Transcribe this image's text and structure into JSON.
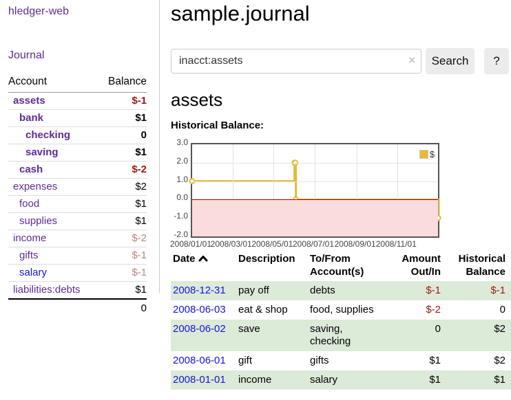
{
  "app": {
    "title": "hledger-web",
    "nav_journal": "Journal"
  },
  "colors": {
    "link_purple": "#5e2b97",
    "link_blue": "#1414e0",
    "negative_strong": "#9d1515",
    "negative_muted": "#bf8080",
    "row_shade_green": "#dcead8",
    "series_yellow": "#e6ba35",
    "negative_region_pink": "#fbdcdc",
    "zero_line_red": "#a40000",
    "button_gray": "#ececec"
  },
  "sidebar": {
    "header": {
      "account": "Account",
      "balance": "Balance"
    },
    "rows": [
      {
        "label": "assets",
        "balance": "$-1",
        "indent": 1,
        "bold": true,
        "balance_style": "neg-strong"
      },
      {
        "label": "bank",
        "balance": "$1",
        "indent": 2,
        "bold": true,
        "balance_style": "pos"
      },
      {
        "label": "checking",
        "balance": "0",
        "indent": 3,
        "bold": true,
        "balance_style": "pos"
      },
      {
        "label": "saving",
        "balance": "$1",
        "indent": 3,
        "bold": true,
        "balance_style": "pos"
      },
      {
        "label": "cash",
        "balance": "$-2",
        "indent": 2,
        "bold": true,
        "balance_style": "neg-strong"
      },
      {
        "label": "expenses",
        "balance": "$2",
        "indent": 1,
        "bold": false,
        "balance_style": "pos"
      },
      {
        "label": "food",
        "balance": "$1",
        "indent": 2,
        "bold": false,
        "balance_style": "pos"
      },
      {
        "label": "supplies",
        "balance": "$1",
        "indent": 2,
        "bold": false,
        "balance_style": "pos"
      },
      {
        "label": "income",
        "balance": "$-2",
        "indent": 1,
        "bold": false,
        "balance_style": "neg-muted"
      },
      {
        "label": "gifts",
        "balance": "$-1",
        "indent": 2,
        "bold": false,
        "balance_style": "neg-muted"
      },
      {
        "label": "salary",
        "balance": "$-1",
        "indent": 2,
        "bold": false,
        "balance_style": "neg-muted",
        "link_style": "blue"
      },
      {
        "label": "liabilities:debts",
        "balance": "$1",
        "indent": 1,
        "bold": false,
        "balance_style": "pos"
      }
    ],
    "total": "0"
  },
  "main": {
    "title": "sample.journal",
    "search": {
      "value": "inacct:assets",
      "clear_icon": "×",
      "button": "Search",
      "help_button": "?"
    },
    "account_heading": "assets",
    "chart_label": "Historical Balance:"
  },
  "chart_data": {
    "type": "line",
    "title": "Historical Balance",
    "xlabel": "",
    "ylabel": "",
    "grid": true,
    "legend": {
      "label": "$",
      "position": "top-right"
    },
    "ylim": [
      -2.0,
      3.0
    ],
    "xlim_days": [
      0,
      365
    ],
    "y_ticks": [
      "3.0",
      "2.0",
      "1.0",
      "0.0",
      "-1.0",
      "-2.0"
    ],
    "x_ticks": [
      {
        "label": "2008/01/01",
        "day": 0
      },
      {
        "label": "2008/03/01",
        "day": 60
      },
      {
        "label": "2008/05/01",
        "day": 121
      },
      {
        "label": "2008/07/01",
        "day": 182
      },
      {
        "label": "2008/09/01",
        "day": 244
      },
      {
        "label": "2008/11/01",
        "day": 305
      }
    ],
    "series": [
      {
        "name": "$",
        "step": true,
        "points": [
          {
            "date": "2008-01-01",
            "day": 0,
            "value": 1
          },
          {
            "date": "2008-06-01",
            "day": 152,
            "value": 2
          },
          {
            "date": "2008-06-02",
            "day": 153,
            "value": 2
          },
          {
            "date": "2008-06-03",
            "day": 154,
            "value": 0
          },
          {
            "date": "2008-12-31",
            "day": 365,
            "value": -1
          }
        ]
      }
    ]
  },
  "register": {
    "headers": [
      "Date",
      "Description",
      "To/From Account(s)",
      "Amount Out/In",
      "Historical Balance"
    ],
    "sort": {
      "column": "Date",
      "direction": "ascending"
    },
    "rows": [
      {
        "date": "2008-12-31",
        "description": "pay off",
        "accounts": "debts",
        "amount": "$-1",
        "balance": "$-1",
        "amount_neg": true,
        "balance_neg": true,
        "shaded": true
      },
      {
        "date": "2008-06-03",
        "description": "eat & shop",
        "accounts": "food, supplies",
        "amount": "$-2",
        "balance": "0",
        "amount_neg": true,
        "balance_neg": false,
        "shaded": false
      },
      {
        "date": "2008-06-02",
        "description": "save",
        "accounts": "saving, checking",
        "amount": "0",
        "balance": "$2",
        "amount_neg": false,
        "balance_neg": false,
        "shaded": true
      },
      {
        "date": "2008-06-01",
        "description": "gift",
        "accounts": "gifts",
        "amount": "$1",
        "balance": "$2",
        "amount_neg": false,
        "balance_neg": false,
        "shaded": false
      },
      {
        "date": "2008-01-01",
        "description": "income",
        "accounts": "salary",
        "amount": "$1",
        "balance": "$1",
        "amount_neg": false,
        "balance_neg": false,
        "shaded": true
      }
    ]
  }
}
